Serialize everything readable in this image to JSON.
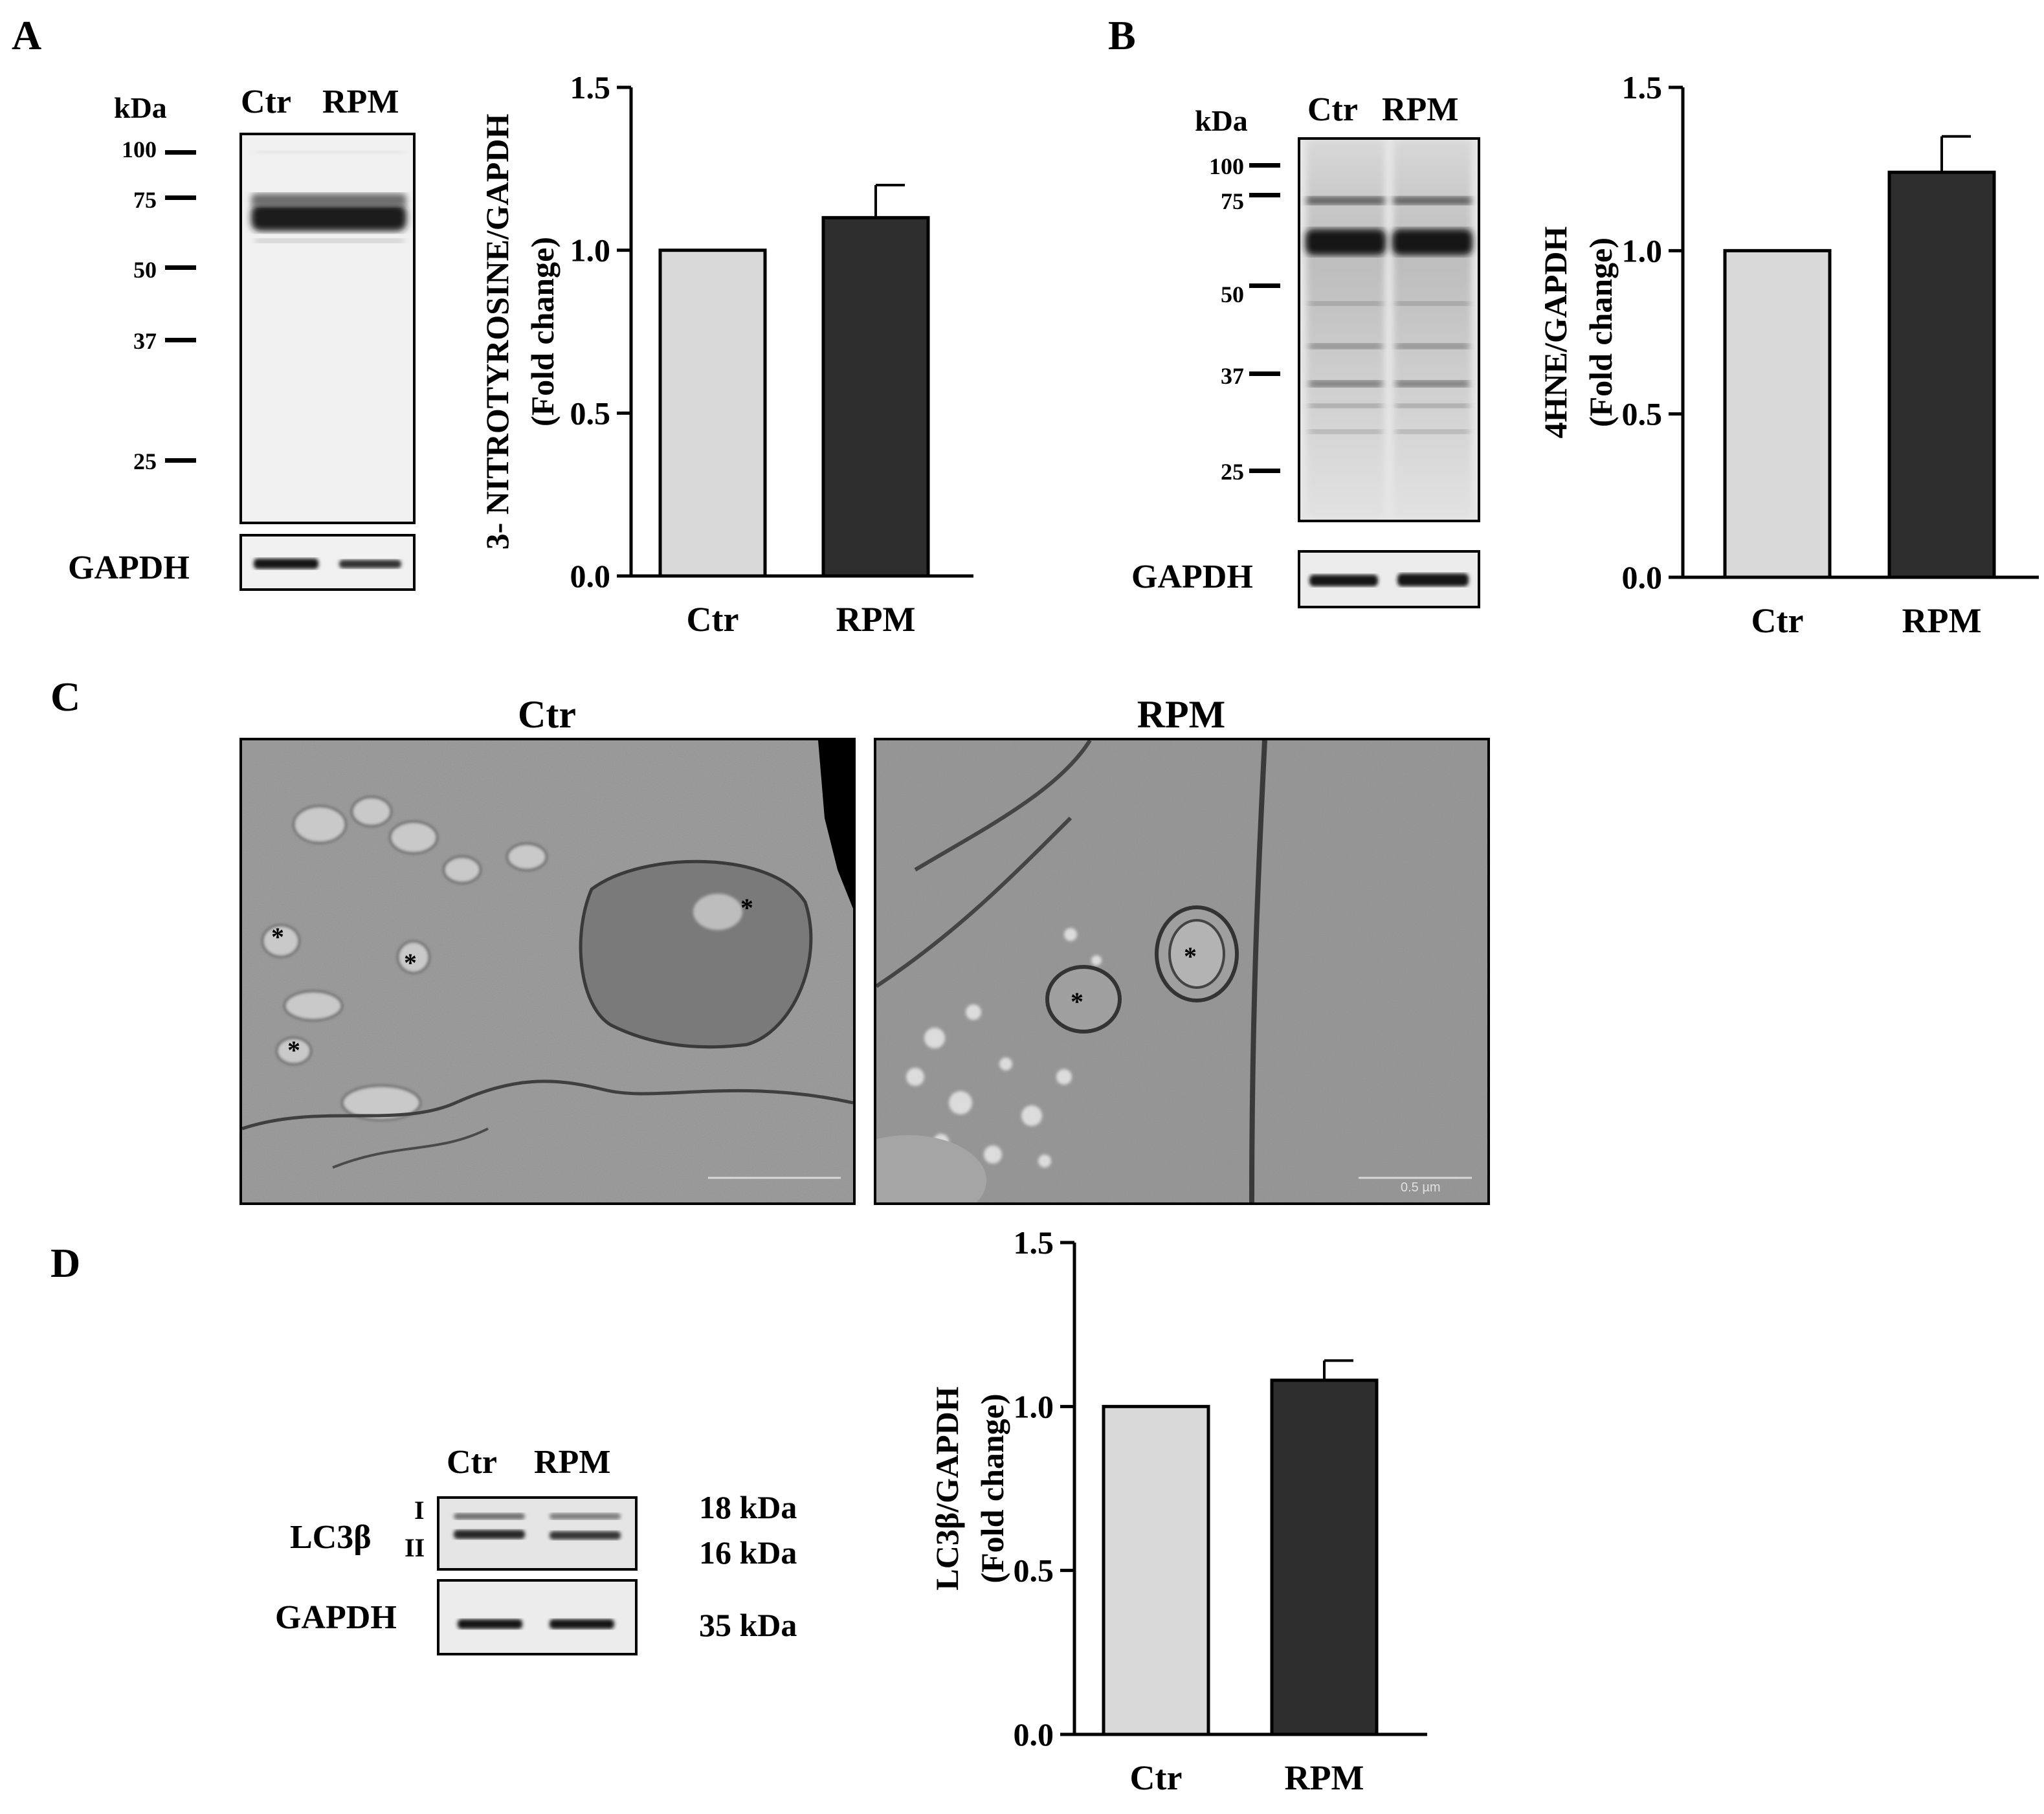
{
  "panels": {
    "a": {
      "letter": "A",
      "blot_lanes": [
        "Ctr",
        "RPM"
      ],
      "kda_header": "kDa",
      "markers": [
        "100",
        "75",
        "50",
        "37",
        "25"
      ],
      "gapdh_label": "GAPDH"
    },
    "b": {
      "letter": "B",
      "blot_lanes": [
        "Ctr",
        "RPM"
      ],
      "kda_header": "kDa",
      "markers": [
        "100",
        "75",
        "50",
        "37",
        "25"
      ],
      "gapdh_label": "GAPDH"
    },
    "c": {
      "letter": "C",
      "left_title": "Ctr",
      "right_title": "RPM",
      "asterisk": "*",
      "scale_right": "0.5 µm"
    },
    "d": {
      "letter": "D",
      "blot_lanes": [
        "Ctr",
        "RPM"
      ],
      "protein_label": "LC3β",
      "band_i": "I",
      "band_ii": "II",
      "gapdh_label": "GAPDH",
      "size_18": "18 kDa",
      "size_16": "16 kDa",
      "size_35": "35 kDa"
    }
  },
  "chart_data": [
    {
      "type": "bar",
      "categories": [
        "Ctr",
        "RPM"
      ],
      "values": [
        1.0,
        1.1
      ],
      "errors": [
        0,
        0.1
      ],
      "ylabel_line1": "3- NITROTYROSINE/GAPDH",
      "ylabel_line2": "(Fold change)",
      "ylim": [
        0,
        1.5
      ],
      "yticks": [
        "0.0",
        "0.5",
        "1.0",
        "1.5"
      ],
      "colors": [
        "#d9d9d9",
        "#2e2e2e"
      ]
    },
    {
      "type": "bar",
      "categories": [
        "Ctr",
        "RPM"
      ],
      "values": [
        1.0,
        1.24
      ],
      "errors": [
        0,
        0.11
      ],
      "ylabel_line1": "4HNE/GAPDH",
      "ylabel_line2": "(Fold change)",
      "ylim": [
        0,
        1.5
      ],
      "yticks": [
        "0.0",
        "0.5",
        "1.0",
        "1.5"
      ],
      "colors": [
        "#d9d9d9",
        "#2e2e2e"
      ]
    },
    {
      "type": "bar",
      "categories": [
        "Ctr",
        "RPM"
      ],
      "values": [
        1.0,
        1.08
      ],
      "errors": [
        0,
        0.06
      ],
      "ylabel_line1": "LC3β/GAPDH",
      "ylabel_line2": "(Fold change)",
      "ylim": [
        0,
        1.5
      ],
      "yticks": [
        "0.0",
        "0.5",
        "1.0",
        "1.5"
      ],
      "colors": [
        "#d9d9d9",
        "#2e2e2e"
      ]
    }
  ]
}
